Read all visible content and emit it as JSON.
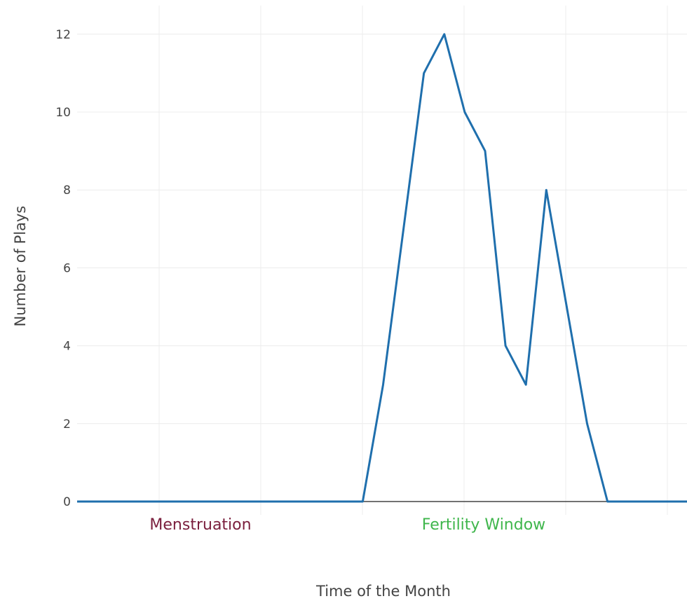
{
  "chart_data": {
    "type": "line",
    "title": "",
    "xlabel": "Time of the Month",
    "ylabel": "Number of Plays",
    "ylim": [
      0,
      12.5
    ],
    "yticks": [
      "0",
      "2",
      "4",
      "6",
      "8",
      "10",
      "12"
    ],
    "grid": true,
    "region_labels": [
      {
        "text": "Menstruation",
        "color": "#7a1f3d"
      },
      {
        "text": "Fertility Window",
        "color": "#3fb64c"
      }
    ],
    "series": [
      {
        "color": "#1f6fad",
        "x": [
          0,
          1,
          2,
          3,
          4,
          5,
          6,
          7,
          8,
          9,
          10,
          11,
          12,
          13,
          14,
          15,
          16,
          17,
          18,
          19,
          20,
          21,
          22,
          23,
          24,
          25,
          26,
          27,
          28,
          29,
          30
        ],
        "y": [
          0,
          0,
          0,
          0,
          0,
          0,
          0,
          0,
          0,
          0,
          0,
          0,
          0,
          0,
          0,
          3,
          7,
          11,
          12,
          10,
          9,
          4,
          3,
          8,
          5,
          2,
          0,
          0,
          0,
          0,
          0
        ]
      }
    ]
  }
}
